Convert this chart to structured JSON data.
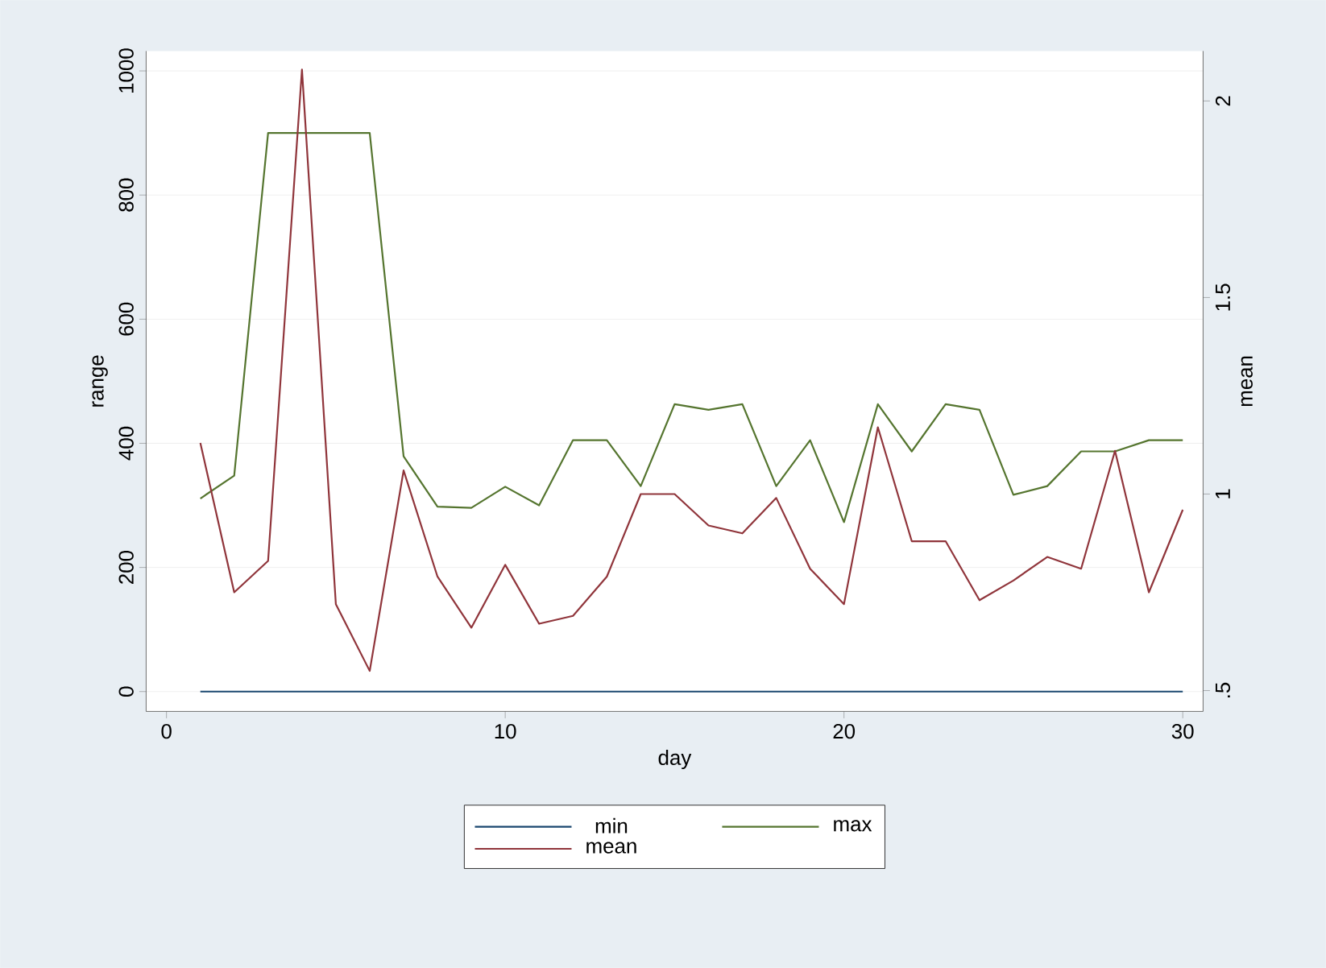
{
  "chart_data": {
    "type": "line",
    "xlabel": "day",
    "ylabel": "range",
    "y2label": "mean",
    "x": [
      1,
      2,
      3,
      4,
      5,
      6,
      7,
      8,
      9,
      10,
      11,
      12,
      13,
      14,
      15,
      16,
      17,
      18,
      19,
      20,
      21,
      22,
      23,
      24,
      25,
      26,
      27,
      28,
      29,
      30
    ],
    "series": [
      {
        "name": "min",
        "color": "#1a476f",
        "values": [
          0,
          0,
          0,
          0,
          0,
          0,
          0,
          0,
          0,
          0,
          0,
          0,
          0,
          0,
          0,
          0,
          0,
          0,
          0,
          0,
          0,
          0,
          0,
          0,
          0,
          0,
          0,
          0,
          0,
          0
        ]
      },
      {
        "name": "max",
        "color": "#55752f",
        "values": [
          311,
          348,
          900,
          900,
          900,
          900,
          379,
          298,
          296,
          330,
          300,
          405,
          405,
          331,
          463,
          454,
          463,
          331,
          405,
          273,
          463,
          387,
          463,
          454,
          317,
          331,
          387,
          387,
          405,
          405
        ]
      },
      {
        "name": "mean",
        "color": "#90353b",
        "axis": "y2",
        "values": [
          1.13,
          0.75,
          0.83,
          2.08,
          0.72,
          0.55,
          1.06,
          0.79,
          0.66,
          0.82,
          0.67,
          0.69,
          0.79,
          1.0,
          1.0,
          0.92,
          0.9,
          0.99,
          0.81,
          0.72,
          1.17,
          0.88,
          0.88,
          0.73,
          0.78,
          0.84,
          0.81,
          1.11,
          0.75,
          0.96
        ]
      }
    ],
    "xlim": [
      -0.6,
      30.6
    ],
    "xticks": [
      0,
      10,
      20,
      30
    ],
    "ylim": [
      -32,
      1032
    ],
    "yticks": [
      0,
      200,
      400,
      600,
      800,
      1000
    ],
    "y2lim": [
      0.447,
      2.127
    ],
    "y2ticks": [
      {
        "value": 0.5,
        "label": ".5"
      },
      1,
      1.5,
      2
    ],
    "grid": "y",
    "legend": "bottom",
    "marker": "none",
    "line_style": "solid"
  }
}
